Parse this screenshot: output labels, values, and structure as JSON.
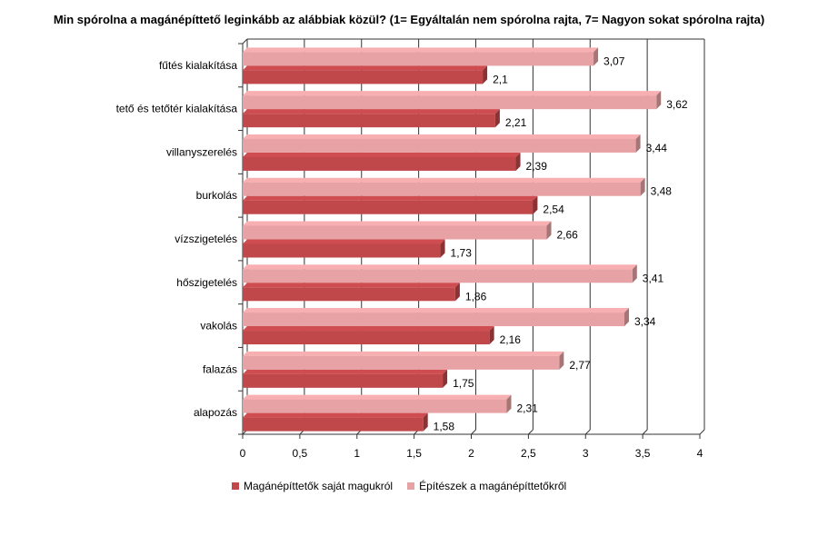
{
  "chart_data": {
    "type": "bar",
    "orientation": "horizontal",
    "title": "Min spórolna a magánépíttető leginkább az alábbiak közül? (1= Egyáltalán nem spórolna rajta, 7= Nagyon sokat spórolna rajta)",
    "categories": [
      "fűtés kialakítása",
      "tető és tetőtér kialakítása",
      "villanyszerelés",
      "burkolás",
      "vízszigetelés",
      "hőszigetelés",
      "vakolás",
      "falazás",
      "alapozás"
    ],
    "series": [
      {
        "name": "Építészek a magánépíttetőkről",
        "color": "#e6a2a4",
        "values": [
          3.07,
          3.62,
          3.44,
          3.48,
          2.66,
          3.41,
          3.34,
          2.77,
          2.31
        ],
        "labels": [
          "3,07",
          "3,62",
          "3,44",
          "3,48",
          "2,66",
          "3,41",
          "3,34",
          "2,77",
          "2,31"
        ]
      },
      {
        "name": "Magánépíttetők saját magukról",
        "color": "#c0474a",
        "values": [
          2.1,
          2.21,
          2.39,
          2.54,
          1.73,
          1.86,
          2.16,
          1.75,
          1.58
        ],
        "labels": [
          "2,1",
          "2,21",
          "2,39",
          "2,54",
          "1,73",
          "1,86",
          "2,16",
          "1,75",
          "1,58"
        ]
      }
    ],
    "xlim": [
      0,
      4
    ],
    "xticks": [
      0,
      0.5,
      1,
      1.5,
      2,
      2.5,
      3,
      3.5,
      4
    ],
    "xtick_labels": [
      "0",
      "0,5",
      "1",
      "1,5",
      "2",
      "2,5",
      "3",
      "3,5",
      "4"
    ],
    "grid": true,
    "legend_position": "bottom",
    "legend_order": [
      "Magánépíttetők saját magukról",
      "Építészek a magánépíttetőkről"
    ]
  }
}
